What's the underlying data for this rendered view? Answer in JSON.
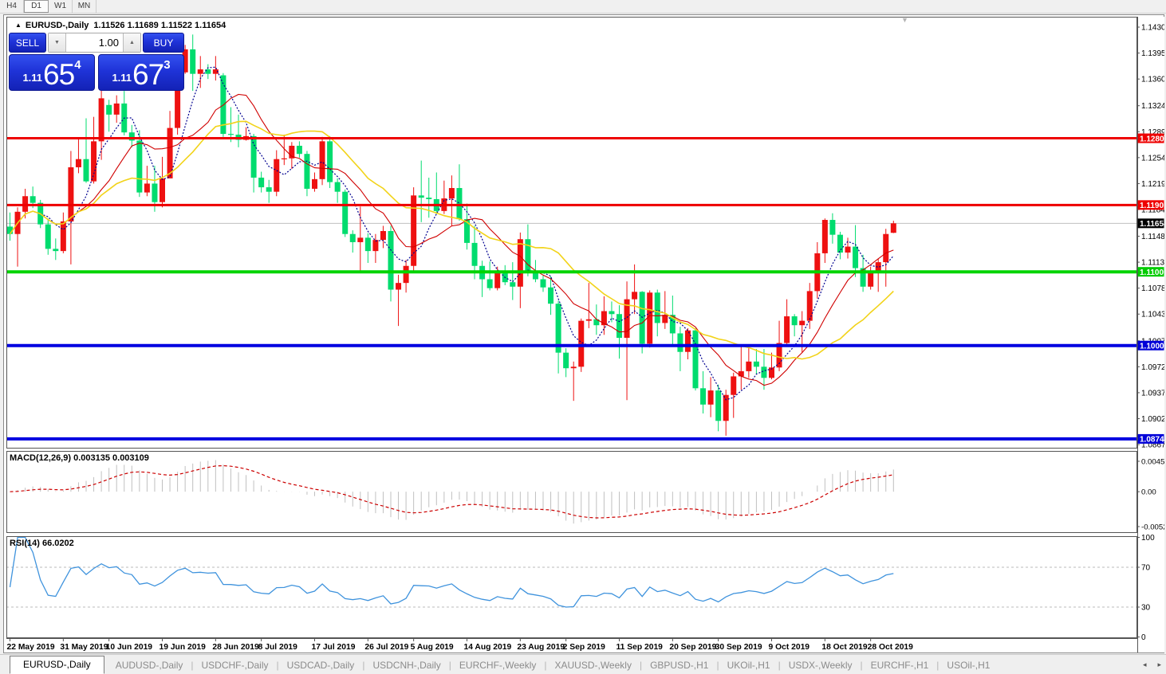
{
  "toolbar": {
    "timeframes": [
      {
        "label": "H4",
        "active": false
      },
      {
        "label": "D1",
        "active": true
      },
      {
        "label": "W1",
        "active": false
      },
      {
        "label": "MN",
        "active": false
      }
    ]
  },
  "chart": {
    "collapse_arrow": "▲",
    "symbol_title": "EURUSD-,Daily",
    "ohlc_string": "1.11526 1.11689 1.11522 1.11654",
    "shift_marker": "▼"
  },
  "trade_panel": {
    "sell_label": "SELL",
    "buy_label": "BUY",
    "volume": "1.00",
    "down_arrow": "▼",
    "up_arrow": "▲",
    "sell_price_prefix": "1.11",
    "sell_price_big": "65",
    "sell_price_sup": "4",
    "buy_price_prefix": "1.11",
    "buy_price_big": "67",
    "buy_price_sup": "3"
  },
  "macd_panel": {
    "label": "MACD(12,26,9) 0.003135 0.003109"
  },
  "rsi_panel": {
    "label": "RSI(14) 66.0202"
  },
  "tabs": {
    "separator": "|",
    "scroll_left": "◂",
    "scroll_right": "▸",
    "items": [
      {
        "label": "EURUSD-,Daily",
        "active": true
      },
      {
        "label": "AUDUSD-,Daily",
        "active": false
      },
      {
        "label": "USDCHF-,Daily",
        "active": false
      },
      {
        "label": "USDCAD-,Daily",
        "active": false
      },
      {
        "label": "USDCNH-,Daily",
        "active": false
      },
      {
        "label": "EURCHF-,Weekly",
        "active": false
      },
      {
        "label": "XAUUSD-,Weekly",
        "active": false
      },
      {
        "label": "GBPUSD-,H1",
        "active": false
      },
      {
        "label": "UKOil-,H1",
        "active": false
      },
      {
        "label": "USDX-,Weekly",
        "active": false
      },
      {
        "label": "EURCHF-,H1",
        "active": false
      },
      {
        "label": "USOil-,H1",
        "active": false
      }
    ]
  },
  "chart_data": {
    "type": "candlestick",
    "symbol": "EURUSD-,Daily",
    "current_bar": {
      "open": 1.11526,
      "high": 1.11689,
      "low": 1.11522,
      "close": 1.11654
    },
    "bull_color": "#ee1111",
    "bear_color": "#00dc6e",
    "current_price_line": {
      "price": 1.11654,
      "color": "#c0c0c0",
      "width": 1
    },
    "ylim": [
      1.08617,
      1.1444
    ],
    "price_ticks": [
      "1.14300",
      "1.13950",
      "1.13600",
      "1.13240",
      "1.12890",
      "1.12540",
      "1.12190",
      "1.11840",
      "1.11480",
      "1.11130",
      "1.10780",
      "1.10430",
      "1.10070",
      "1.09720",
      "1.09370",
      "1.09020",
      "1.08670"
    ],
    "level_labels": [
      {
        "text": "1.12801",
        "color": "#ee0000"
      },
      {
        "text": "1.11901",
        "color": "#ee0000"
      },
      {
        "text": "1.11654",
        "color": "#000000"
      },
      {
        "text": "1.11000",
        "color": "#00cc00"
      },
      {
        "text": "1.10006",
        "color": "#0000d8"
      },
      {
        "text": "1.08747",
        "color": "#0000d8"
      }
    ],
    "hlines": [
      {
        "price": 1.12801,
        "color": "#ee0000",
        "width": 3
      },
      {
        "price": 1.11901,
        "color": "#ee0000",
        "width": 3
      },
      {
        "price": 1.11,
        "color": "#00d400",
        "width": 4
      },
      {
        "price": 1.10006,
        "color": "#0000e0",
        "width": 4
      },
      {
        "price": 1.08747,
        "color": "#0000e0",
        "width": 4
      }
    ],
    "moving_averages": [
      {
        "period": 5,
        "color": "#000090",
        "style": "dotted",
        "width": 1.2
      },
      {
        "period": 10,
        "color": "#d00000",
        "style": "solid",
        "width": 1.1
      },
      {
        "period": 20,
        "color": "#f2d319",
        "style": "solid",
        "width": 1.6
      }
    ],
    "macd": {
      "fast": 12,
      "slow": 26,
      "signal": 9,
      "value": 0.003135,
      "signal_value": 0.003109,
      "ylim": [
        -0.00616,
        0.00608
      ],
      "axis_labels": [
        {
          "text": "0.004536",
          "value": 0.004536
        },
        {
          "text": "0.00",
          "value": 0.0
        },
        {
          "text": "-0.005205",
          "value": -0.005205
        }
      ],
      "histogram_color": "#c0c0c0",
      "signal_color": "#cc0000"
    },
    "rsi": {
      "period": 14,
      "value": 66.0202,
      "ylim": [
        -1.2,
        101.2
      ],
      "line_color": "#3f93dd",
      "levels": [
        70,
        30
      ],
      "axis_labels": [
        "100",
        "70",
        "30",
        "0"
      ]
    },
    "date_ticks": [
      {
        "text": "22 May 2019",
        "index": 0
      },
      {
        "text": "31 May 2019",
        "index": 7
      },
      {
        "text": "10 Jun 2019",
        "index": 13
      },
      {
        "text": "19 Jun 2019",
        "index": 20
      },
      {
        "text": "28 Jun 2019",
        "index": 27
      },
      {
        "text": "8 Jul 2019",
        "index": 33
      },
      {
        "text": "17 Jul 2019",
        "index": 40
      },
      {
        "text": "26 Jul 2019",
        "index": 47
      },
      {
        "text": "5 Aug 2019",
        "index": 53
      },
      {
        "text": "14 Aug 2019",
        "index": 60
      },
      {
        "text": "23 Aug 2019",
        "index": 67
      },
      {
        "text": "2 Sep 2019",
        "index": 73
      },
      {
        "text": "11 Sep 2019",
        "index": 80
      },
      {
        "text": "20 Sep 2019",
        "index": 87
      },
      {
        "text": "30 Sep 2019",
        "index": 93
      },
      {
        "text": "9 Oct 2019",
        "index": 100
      },
      {
        "text": "18 Oct 2019",
        "index": 107
      },
      {
        "text": "28 Oct 2019",
        "index": 113
      }
    ],
    "candles": [
      [
        1.1161,
        1.118,
        1.1142,
        1.1151
      ],
      [
        1.1151,
        1.1187,
        1.1107,
        1.1181
      ],
      [
        1.1181,
        1.1212,
        1.1172,
        1.1202
      ],
      [
        1.1202,
        1.1215,
        1.1186,
        1.1193
      ],
      [
        1.1193,
        1.1197,
        1.1159,
        1.1164
      ],
      [
        1.1164,
        1.1172,
        1.1123,
        1.1131
      ],
      [
        1.1131,
        1.1145,
        1.1116,
        1.1128
      ],
      [
        1.1128,
        1.118,
        1.1125,
        1.1168
      ],
      [
        1.1168,
        1.1263,
        1.111,
        1.1241
      ],
      [
        1.1241,
        1.128,
        1.1233,
        1.1252
      ],
      [
        1.1252,
        1.1307,
        1.122,
        1.1222
      ],
      [
        1.1222,
        1.1309,
        1.1219,
        1.1276
      ],
      [
        1.1276,
        1.1348,
        1.1251,
        1.1334
      ],
      [
        1.1325,
        1.1332,
        1.1289,
        1.1312
      ],
      [
        1.1312,
        1.1338,
        1.1301,
        1.1327
      ],
      [
        1.1327,
        1.1344,
        1.1284,
        1.1288
      ],
      [
        1.1288,
        1.1298,
        1.1268,
        1.1277
      ],
      [
        1.1277,
        1.1291,
        1.1201,
        1.1207
      ],
      [
        1.1207,
        1.1243,
        1.1202,
        1.1219
      ],
      [
        1.1219,
        1.1243,
        1.1181,
        1.1194
      ],
      [
        1.1194,
        1.1255,
        1.1187,
        1.1226
      ],
      [
        1.1226,
        1.1317,
        1.1226,
        1.1294
      ],
      [
        1.1294,
        1.1378,
        1.1285,
        1.1369
      ],
      [
        1.1369,
        1.1406,
        1.1367,
        1.14
      ],
      [
        1.14,
        1.142,
        1.1344,
        1.1367
      ],
      [
        1.1367,
        1.1391,
        1.1348,
        1.1373
      ],
      [
        1.1373,
        1.138,
        1.136,
        1.1367
      ],
      [
        1.1367,
        1.1391,
        1.1358,
        1.1373
      ],
      [
        1.1365,
        1.1368,
        1.1282,
        1.1286
      ],
      [
        1.1286,
        1.1322,
        1.1275,
        1.1285
      ],
      [
        1.1285,
        1.1312,
        1.1268,
        1.1278
      ],
      [
        1.1278,
        1.1295,
        1.1277,
        1.1283
      ],
      [
        1.1283,
        1.1286,
        1.1207,
        1.1227
      ],
      [
        1.1227,
        1.1235,
        1.1207,
        1.1214
      ],
      [
        1.1214,
        1.1224,
        1.1193,
        1.1208
      ],
      [
        1.1208,
        1.1264,
        1.1202,
        1.1252
      ],
      [
        1.1252,
        1.1285,
        1.1244,
        1.1253
      ],
      [
        1.1253,
        1.1275,
        1.1239,
        1.127
      ],
      [
        1.127,
        1.1276,
        1.1254,
        1.1259
      ],
      [
        1.1259,
        1.1263,
        1.1202,
        1.1212
      ],
      [
        1.1212,
        1.1234,
        1.1208,
        1.1225
      ],
      [
        1.1225,
        1.1282,
        1.1217,
        1.1276
      ],
      [
        1.1276,
        1.1283,
        1.1213,
        1.1221
      ],
      [
        1.1221,
        1.1226,
        1.1193,
        1.1208
      ],
      [
        1.1208,
        1.1211,
        1.1147,
        1.1151
      ],
      [
        1.1151,
        1.1156,
        1.1126,
        1.114
      ],
      [
        1.114,
        1.1188,
        1.1101,
        1.1146
      ],
      [
        1.1146,
        1.1152,
        1.1112,
        1.1128
      ],
      [
        1.1128,
        1.1151,
        1.1112,
        1.1143
      ],
      [
        1.1143,
        1.1162,
        1.1132,
        1.1155
      ],
      [
        1.1155,
        1.1162,
        1.106,
        1.1076
      ],
      [
        1.1076,
        1.1096,
        1.1027,
        1.1085
      ],
      [
        1.1085,
        1.1116,
        1.1072,
        1.1108
      ],
      [
        1.1108,
        1.1214,
        1.1101,
        1.1203
      ],
      [
        1.1203,
        1.125,
        1.1167,
        1.12
      ],
      [
        1.12,
        1.1227,
        1.1173,
        1.1198
      ],
      [
        1.1198,
        1.1234,
        1.1178,
        1.1182
      ],
      [
        1.1182,
        1.1223,
        1.1178,
        1.1199
      ],
      [
        1.1199,
        1.123,
        1.1162,
        1.1213
      ],
      [
        1.1213,
        1.1245,
        1.1169,
        1.1171
      ],
      [
        1.1171,
        1.1192,
        1.113,
        1.1139
      ],
      [
        1.1139,
        1.1162,
        1.109,
        1.1108
      ],
      [
        1.1108,
        1.1115,
        1.1066,
        1.109
      ],
      [
        1.109,
        1.1114,
        1.1075,
        1.1078
      ],
      [
        1.1078,
        1.1107,
        1.1075,
        1.11
      ],
      [
        1.11,
        1.1109,
        1.1082,
        1.1086
      ],
      [
        1.1086,
        1.1113,
        1.1062,
        1.108
      ],
      [
        1.108,
        1.1153,
        1.1051,
        1.1144
      ],
      [
        1.1144,
        1.1164,
        1.1094,
        1.1101
      ],
      [
        1.1101,
        1.1116,
        1.1086,
        1.109
      ],
      [
        1.109,
        1.1095,
        1.1073,
        1.1079
      ],
      [
        1.1079,
        1.1094,
        1.1042,
        1.1057
      ],
      [
        1.1057,
        1.1061,
        1.0963,
        1.0991
      ],
      [
        1.0991,
        1.0997,
        1.0958,
        1.097
      ],
      [
        1.097,
        1.0979,
        1.0926,
        1.0972
      ],
      [
        1.0972,
        1.1037,
        1.0965,
        1.1034
      ],
      [
        1.1034,
        1.1085,
        1.1024,
        1.1036
      ],
      [
        1.1036,
        1.1056,
        1.1015,
        1.1028
      ],
      [
        1.1028,
        1.1067,
        1.1015,
        1.1047
      ],
      [
        1.1047,
        1.106,
        1.1032,
        1.1043
      ],
      [
        1.1043,
        1.1055,
        1.0983,
        1.1011
      ],
      [
        1.1011,
        1.1087,
        1.0927,
        1.1063
      ],
      [
        1.1063,
        1.111,
        1.1043,
        1.1073
      ],
      [
        1.1073,
        1.1074,
        1.099,
        1.1003
      ],
      [
        1.1003,
        1.1075,
        1.0998,
        1.1072
      ],
      [
        1.1072,
        1.1076,
        1.1013,
        1.1031
      ],
      [
        1.1031,
        1.1074,
        1.1023,
        1.1042
      ],
      [
        1.1042,
        1.1068,
        1.1,
        1.1017
      ],
      [
        1.1017,
        1.1026,
        1.0966,
        1.0992
      ],
      [
        1.0992,
        1.1024,
        1.0982,
        1.1021
      ],
      [
        1.1021,
        1.1024,
        1.094,
        1.0943
      ],
      [
        1.0943,
        1.0966,
        1.0909,
        1.0921
      ],
      [
        1.0921,
        1.0958,
        1.0904,
        1.094
      ],
      [
        1.094,
        1.0948,
        1.0885,
        1.0899
      ],
      [
        1.0899,
        1.0941,
        1.0879,
        1.0934
      ],
      [
        1.0934,
        1.0964,
        1.0903,
        1.0959
      ],
      [
        1.0959,
        1.0999,
        1.0941,
        1.0966
      ],
      [
        1.0966,
        1.0999,
        1.0957,
        1.0979
      ],
      [
        1.0979,
        1.0996,
        1.0962,
        1.0972
      ],
      [
        1.0972,
        1.0996,
        1.0941,
        1.0957
      ],
      [
        1.0957,
        1.0991,
        1.0955,
        1.0971
      ],
      [
        1.0971,
        1.1034,
        1.0966,
        1.1004
      ],
      [
        1.1004,
        1.1063,
        1.1002,
        1.104
      ],
      [
        1.104,
        1.1043,
        1.1013,
        1.1028
      ],
      [
        1.1028,
        1.1047,
        1.0991,
        1.1034
      ],
      [
        1.1034,
        1.1085,
        1.1023,
        1.1074
      ],
      [
        1.1074,
        1.114,
        1.1064,
        1.1125
      ],
      [
        1.1125,
        1.1172,
        1.1112,
        1.117
      ],
      [
        1.117,
        1.1179,
        1.1138,
        1.115
      ],
      [
        1.115,
        1.1154,
        1.1117,
        1.1126
      ],
      [
        1.1126,
        1.1146,
        1.1118,
        1.1134
      ],
      [
        1.1134,
        1.1163,
        1.1093,
        1.1105
      ],
      [
        1.1105,
        1.1123,
        1.1073,
        1.108
      ],
      [
        1.108,
        1.1107,
        1.1076,
        1.1099
      ],
      [
        1.1099,
        1.1118,
        1.1073,
        1.1113
      ],
      [
        1.1113,
        1.1158,
        1.108,
        1.1151
      ],
      [
        1.11526,
        1.11689,
        1.11522,
        1.11654
      ]
    ]
  }
}
